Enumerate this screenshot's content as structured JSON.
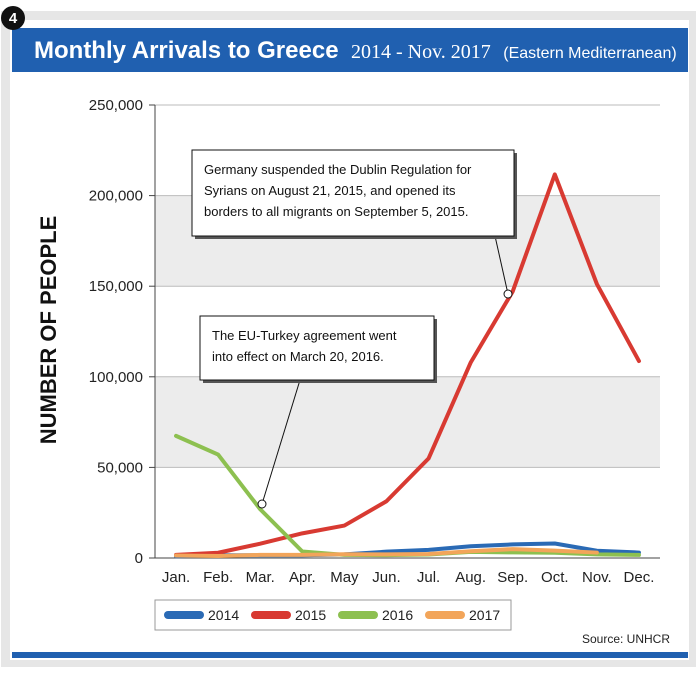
{
  "chart_data": {
    "type": "line",
    "figure_number": "4",
    "title": "Monthly Arrivals to Greece",
    "subtitle": "2014 - Nov. 2017",
    "region": "(Eastern Mediterranean)",
    "y_label": "NUMBER OF PEOPLE",
    "source": "Source: UNHCR",
    "categories": [
      "Jan.",
      "Feb.",
      "Mar.",
      "Apr.",
      "May",
      "Jun.",
      "Jul.",
      "Aug.",
      "Sep.",
      "Oct.",
      "Nov.",
      "Dec."
    ],
    "series": [
      {
        "name": "2014",
        "color": "#2a6ab5",
        "values": [
          1000,
          1500,
          1500,
          1500,
          2000,
          3500,
          4500,
          6500,
          7500,
          8000,
          4000,
          3000
        ]
      },
      {
        "name": "2015",
        "color": "#d83a32",
        "values": [
          1700,
          2900,
          7900,
          13600,
          17900,
          31300,
          54900,
          107800,
          147100,
          211700,
          151200,
          108700
        ]
      },
      {
        "name": "2016",
        "color": "#8dc050",
        "values": [
          67400,
          57100,
          26900,
          3600,
          1700,
          1600,
          1900,
          3400,
          3100,
          2900,
          2000,
          1700
        ]
      },
      {
        "name": "2017",
        "color": "#f2a55a",
        "values": [
          1400,
          1100,
          1700,
          1700,
          2100,
          2000,
          2200,
          3700,
          4900,
          4100,
          3000,
          null
        ]
      }
    ],
    "ylim": [
      0,
      250000
    ],
    "yticks": [
      0,
      {
        "value": 50000,
        "label": "50,000"
      },
      {
        "value": 100000,
        "label": "100,000"
      },
      {
        "value": 150000,
        "label": "150,000"
      },
      {
        "value": 200000,
        "label": "200,000"
      },
      {
        "value": 250000,
        "label": "250,000"
      }
    ],
    "grid": true,
    "annotations": [
      {
        "text": [
          "Germany suspended the Dublin Regulation for",
          "Syrians on August 21, 2015, and opened its",
          "borders to all migrants on September 5, 2015."
        ]
      },
      {
        "text": [
          "The EU-Turkey agreement went",
          "into effect on March 20, 2016."
        ]
      }
    ]
  }
}
